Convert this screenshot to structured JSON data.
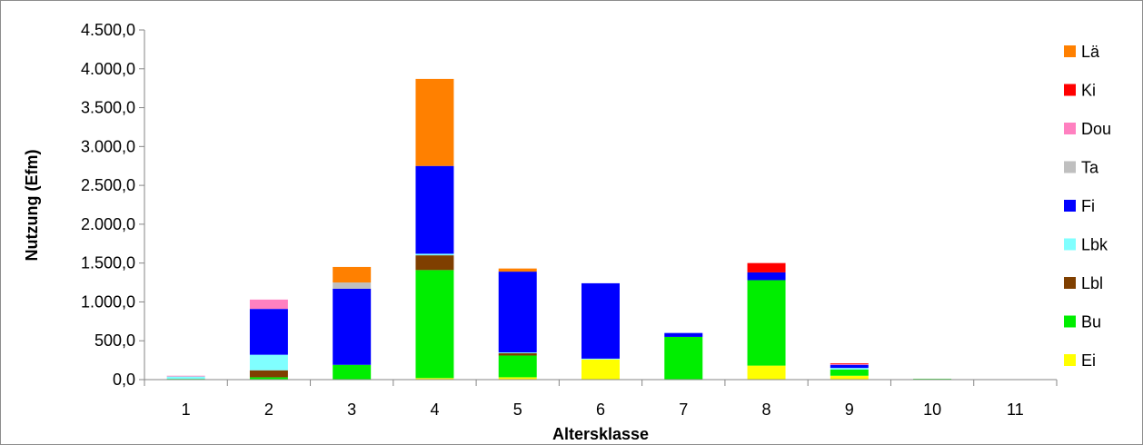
{
  "chart_data": {
    "type": "bar",
    "stacked": true,
    "title": "",
    "xlabel": "Altersklasse",
    "ylabel": "Nutzung (Efm)",
    "ylim": [
      0,
      4500
    ],
    "yticks": [
      "0,0",
      "500,0",
      "1.000,0",
      "1.500,0",
      "2.000,0",
      "2.500,0",
      "3.000,0",
      "3.500,0",
      "4.000,0",
      "4.500,0"
    ],
    "ytick_values": [
      0,
      500,
      1000,
      1500,
      2000,
      2500,
      3000,
      3500,
      4000,
      4500
    ],
    "categories": [
      "1",
      "2",
      "3",
      "4",
      "5",
      "6",
      "7",
      "8",
      "9",
      "10",
      "11"
    ],
    "grid": false,
    "legend_position": "right",
    "series": [
      {
        "name": "Ei",
        "color": "#FFFF00",
        "values": [
          0,
          0,
          0,
          20,
          30,
          260,
          0,
          180,
          50,
          0,
          0
        ]
      },
      {
        "name": "Bu",
        "color": "#00EE00",
        "values": [
          10,
          30,
          190,
          1390,
          280,
          0,
          550,
          1100,
          80,
          10,
          0
        ]
      },
      {
        "name": "Lbl",
        "color": "#7F3F00",
        "values": [
          0,
          90,
          0,
          190,
          30,
          0,
          0,
          0,
          0,
          0,
          0
        ]
      },
      {
        "name": "Lbk",
        "color": "#80FFFF",
        "values": [
          30,
          200,
          0,
          20,
          10,
          10,
          0,
          0,
          20,
          0,
          0
        ]
      },
      {
        "name": "Fi",
        "color": "#0000FF",
        "values": [
          0,
          590,
          980,
          1130,
          1040,
          970,
          50,
          100,
          40,
          0,
          0
        ]
      },
      {
        "name": "Ta",
        "color": "#BFBFBF",
        "values": [
          0,
          0,
          80,
          0,
          0,
          0,
          0,
          0,
          0,
          0,
          0
        ]
      },
      {
        "name": "Dou",
        "color": "#FF80C0",
        "values": [
          10,
          120,
          0,
          0,
          0,
          0,
          0,
          0,
          10,
          0,
          0
        ]
      },
      {
        "name": "Ki",
        "color": "#FF0000",
        "values": [
          0,
          0,
          0,
          0,
          0,
          0,
          0,
          120,
          10,
          0,
          0
        ]
      },
      {
        "name": "Lä",
        "color": "#FF8000",
        "values": [
          0,
          0,
          200,
          1120,
          40,
          0,
          0,
          0,
          0,
          0,
          0
        ]
      }
    ]
  }
}
